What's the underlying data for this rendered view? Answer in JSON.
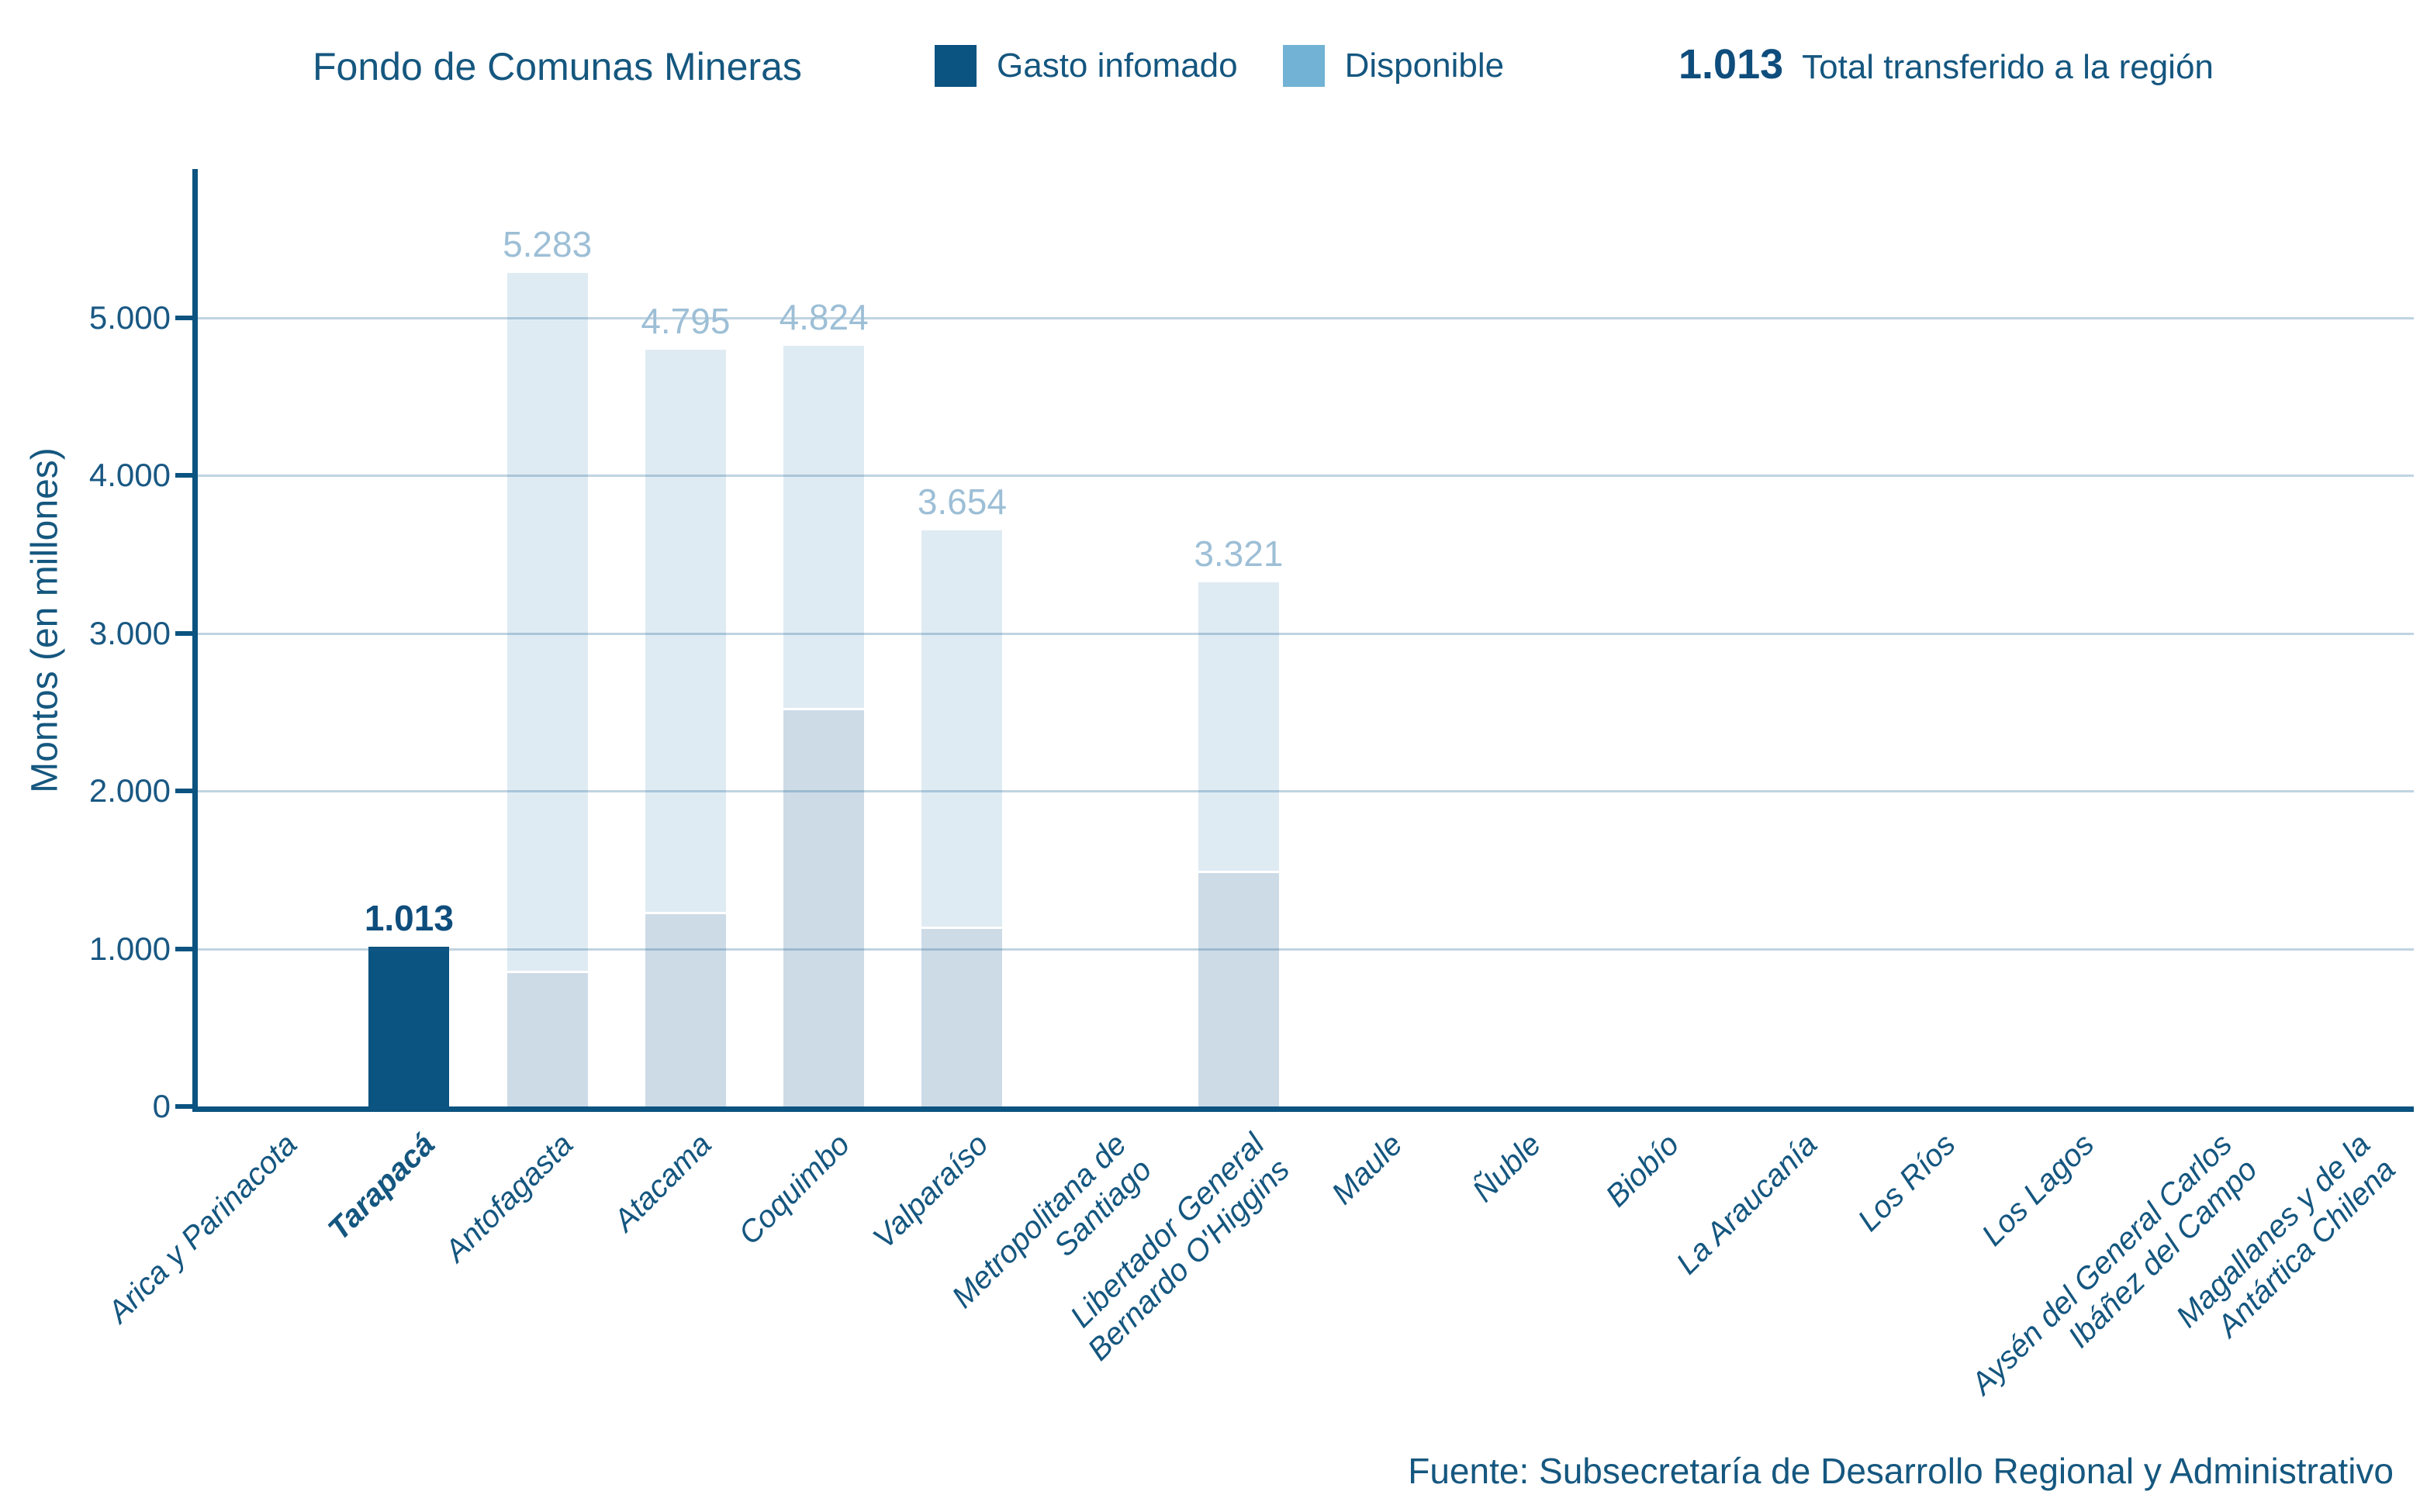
{
  "header": {
    "title": "Fondo de Comunas Mineras",
    "legend": [
      {
        "label": "Gasto infomado",
        "color": "#0B5380"
      },
      {
        "label": "Disponible",
        "color": "#72B2D4"
      }
    ],
    "kpi": {
      "value": "1.013",
      "label": "Total transferido a la región"
    }
  },
  "chart_data": {
    "type": "bar",
    "stacked": true,
    "title": "Fondo de Comunas Mineras",
    "ylabel": "Montos (en millones)",
    "xlabel": "",
    "ylim": [
      0,
      5950
    ],
    "yticks": [
      0,
      1000,
      2000,
      3000,
      4000,
      5000
    ],
    "ytick_labels": [
      "0",
      "1.000",
      "2.000",
      "3.000",
      "4.000",
      "5.000"
    ],
    "grid": "horizontal",
    "legend_position": "top",
    "categories": [
      "Arica y Parinacota",
      "Tarapacá",
      "Antofagasta",
      "Atacama",
      "Coquimbo",
      "Valparaíso",
      "Metropolitana de\nSantiago",
      "Libertador General\nBernardo O'Higgins",
      "Maule",
      "Ñuble",
      "Biobío",
      "La Araucanía",
      "Los Ríos",
      "Los Lagos",
      "Aysén del General Carlos\nIbáñez del Campo",
      "Magallanes y de la\nAntártica Chilena"
    ],
    "series": [
      {
        "name": "Gasto infomado",
        "values": [
          0,
          1013,
          845,
          1220,
          2510,
          1125,
          0,
          1480,
          0,
          0,
          0,
          0,
          0,
          0,
          0,
          0
        ]
      },
      {
        "name": "Disponible",
        "values": [
          0,
          0,
          4438,
          3575,
          2314,
          2529,
          0,
          1841,
          0,
          0,
          0,
          0,
          0,
          0,
          0,
          0
        ]
      }
    ],
    "totals": [
      0,
      1013,
      5283,
      4795,
      4824,
      3654,
      0,
      3321,
      0,
      0,
      0,
      0,
      0,
      0,
      0,
      0
    ],
    "bar_labels": [
      "",
      "1.013",
      "5.283",
      "4.795",
      "4.824",
      "3.654",
      "",
      "3.321",
      "",
      "",
      "",
      "",
      "",
      "",
      "",
      ""
    ],
    "highlight_index": 1,
    "colors": {
      "bar_highlight": "#0B5380",
      "segment_gasto_faded": "#CDDBE7",
      "segment_disponible_faded": "#DFEBF3",
      "axis": "#0B5380",
      "gridline": "#C7DCEA",
      "tick_label": "#195883",
      "bar_label": "#9DBFD6",
      "bar_label_highlight": "#0E4D7C"
    }
  },
  "footer": {
    "source": "Fuente: Subsecretaría de Desarrollo Regional y Administrativo"
  }
}
